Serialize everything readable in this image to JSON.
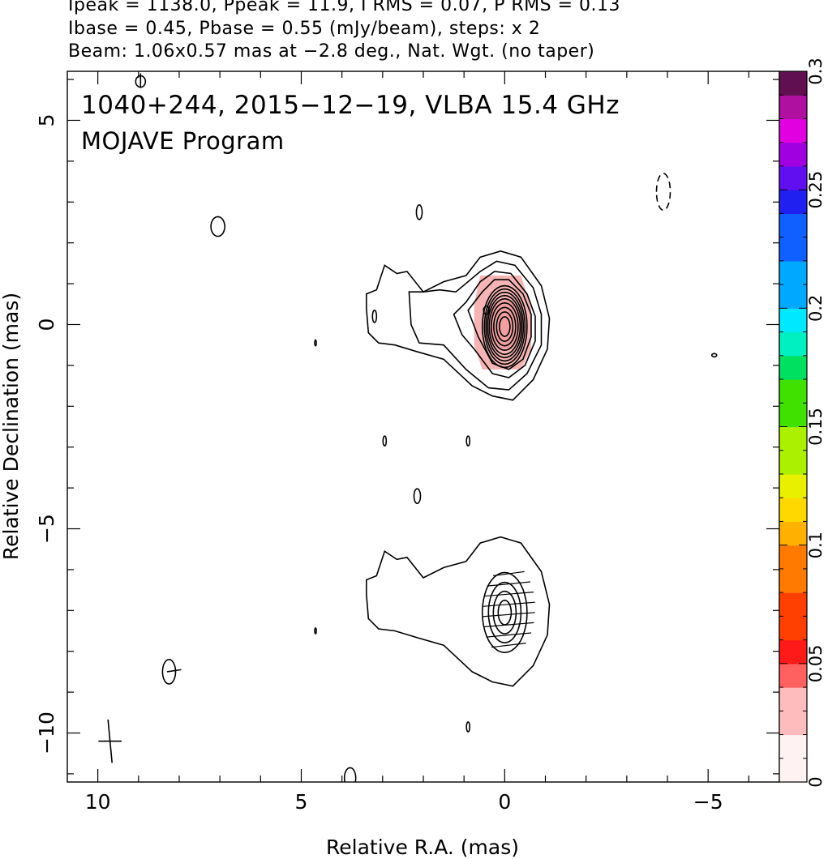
{
  "header": {
    "line1": "Ipeak = 1138.0, Ppeak = 11.9, I RMS = 0.07, P RMS = 0.13",
    "line2": "Ibase = 0.45, Pbase = 0.55 (mJy/beam), steps: x 2",
    "line3": "Beam: 1.06x0.57 mas at −2.8 deg., Nat. Wgt. (no taper)"
  },
  "chart_data": {
    "type": "heatmap",
    "title": "1040+244, 2015−12−19, VLBA 15.4 GHz",
    "subtitle": "MOJAVE Program",
    "xlabel": "Relative R.A. (mas)",
    "ylabel": "Relative Declination (mas)",
    "xlim": [
      10.75,
      -6.75
    ],
    "ylim": [
      -11.2,
      6.2
    ],
    "x_ticks": [
      10,
      5,
      0,
      -5
    ],
    "x_tick_labels": [
      "10",
      "5",
      "0",
      "−5"
    ],
    "y_ticks": [
      5,
      0,
      -5,
      -10
    ],
    "y_tick_labels": [
      "5",
      "0",
      "−5",
      "−10"
    ],
    "colorbar": {
      "range": [
        0,
        0.3
      ],
      "ticks": [
        0,
        0.05,
        0.1,
        0.15,
        0.2,
        0.25,
        0.3
      ],
      "tick_labels": [
        "0",
        "0.05",
        "0.1",
        "0.15",
        "0.2",
        "0.25",
        "0.3"
      ]
    },
    "total_intensity_contours": {
      "base_mJy_per_beam": 0.45,
      "step_factor": 2,
      "peak_mJy_per_beam": 1138.0,
      "core_position_mas": [
        0,
        0
      ],
      "jet_position_angle": "east"
    },
    "polarized_intensity": {
      "peak_mJy_per_beam": 11.9,
      "base_mJy_per_beam": 0.55,
      "region_center_mas": [
        0,
        0
      ]
    },
    "evpa_panel_offset_mas": [
      0,
      -7
    ],
    "beam": {
      "major_mas": 1.06,
      "minor_mas": 0.57,
      "pa_deg": -2.8,
      "location_mas": [
        9.7,
        -10.2
      ]
    }
  }
}
